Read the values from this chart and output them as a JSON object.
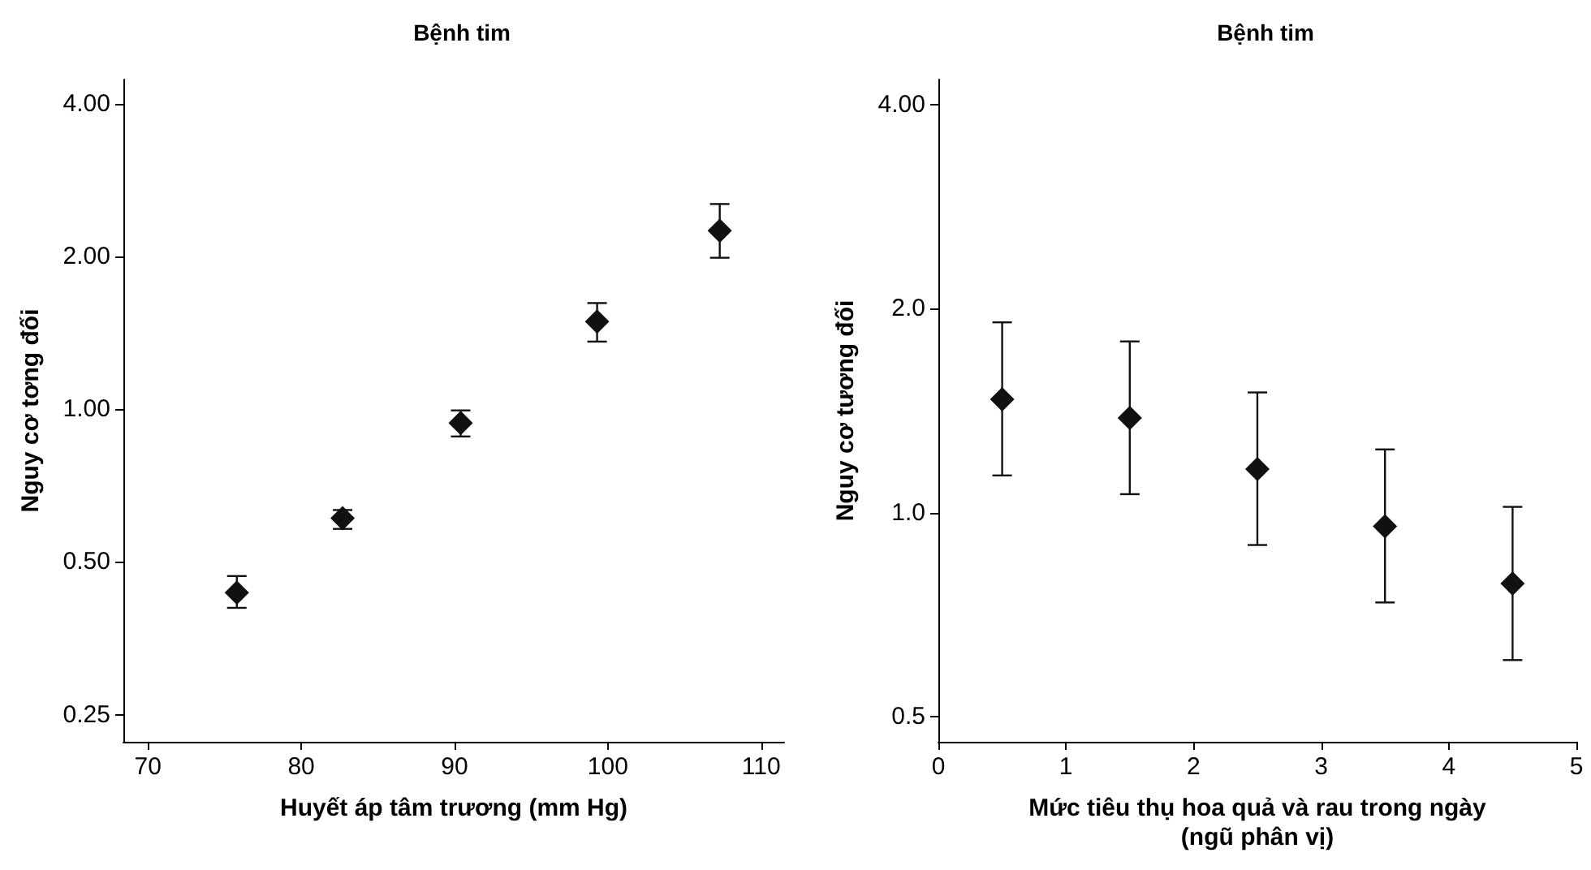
{
  "chart_data": [
    {
      "type": "scatter",
      "title": "Bệnh tim",
      "xlabel": "Huyết áp tâm trương (mm Hg)",
      "ylabel": "Nguy cơ tơng đối",
      "log": "y",
      "grid": false,
      "marker": "diamond",
      "xlim": [
        68.4,
        111.5
      ],
      "xticks": [
        70,
        80,
        90,
        100,
        110
      ],
      "ylim": [
        0.221,
        4.47
      ],
      "yticks": [
        {
          "value": 0.25,
          "label": "0.25"
        },
        {
          "value": 0.5,
          "label": "0.50"
        },
        {
          "value": 1,
          "label": "1.00"
        },
        {
          "value": 2,
          "label": "2.00"
        },
        {
          "value": 4,
          "label": "4.00"
        }
      ],
      "series": [
        {
          "color": "#111111",
          "x": [
            75.8,
            82.7,
            90.4,
            99.3,
            107.3
          ],
          "values": [
            0.435,
            0.61,
            0.94,
            1.49,
            2.25
          ],
          "errors": [
            [
              0.406,
              0.469
            ],
            [
              0.581,
              0.633
            ],
            [
              0.884,
              0.995
            ],
            [
              1.36,
              1.62
            ],
            [
              1.99,
              2.54
            ]
          ]
        }
      ]
    },
    {
      "type": "scatter",
      "title": "Bệnh tim",
      "xlabel": "Mức tiêu thụ hoa quả và rau trong ngày\n(ngũ phân vị)",
      "ylabel": "Nguy cơ tương đối",
      "log": "y",
      "grid": false,
      "marker": "diamond",
      "xlim": [
        0,
        5
      ],
      "xticks": [
        0,
        1,
        2,
        3,
        4,
        5
      ],
      "ylim": [
        0.459,
        4.36
      ],
      "yticks": [
        {
          "value": 0.5,
          "label": "0.5"
        },
        {
          "value": 1,
          "label": "1.0"
        },
        {
          "value": 2,
          "label": "2.0"
        },
        {
          "value": 4,
          "label": "4.00"
        }
      ],
      "series": [
        {
          "color": "#111111",
          "x": [
            0.5,
            1.5,
            2.5,
            3.5,
            4.5
          ],
          "values": [
            1.47,
            1.38,
            1.16,
            0.955,
            0.786
          ],
          "errors": [
            [
              1.135,
              1.91
            ],
            [
              1.065,
              1.79
            ],
            [
              0.896,
              1.505
            ],
            [
              0.737,
              1.24
            ],
            [
              0.606,
              1.02
            ]
          ]
        }
      ]
    }
  ]
}
